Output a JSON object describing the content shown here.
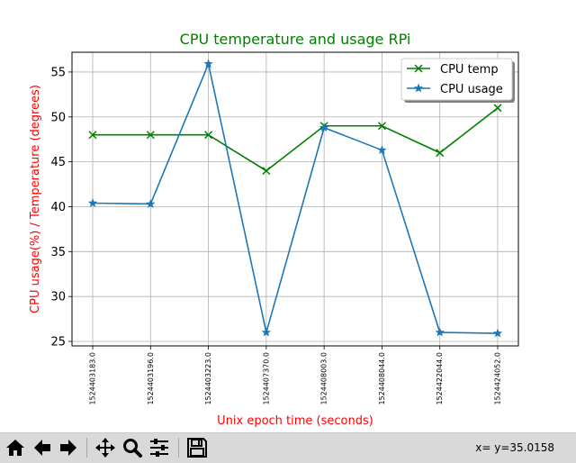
{
  "chart_data": {
    "type": "line",
    "title": "CPU temperature and usage RPi",
    "xlabel": "Unix epoch time (seconds)",
    "ylabel": "CPU usage(%) / Temperature (degrees)",
    "categories": [
      "1524403183.0",
      "1524403196.0",
      "1524403223.0",
      "1524407370.0",
      "1524408003.0",
      "1524408044.0",
      "1524422044.0",
      "1524424052.0"
    ],
    "yticks": [
      "25",
      "30",
      "35",
      "40",
      "45",
      "50",
      "55"
    ],
    "ylim": [
      24.5,
      57.2
    ],
    "grid": true,
    "legend_position": "top-right",
    "series": [
      {
        "name": "CPU temp",
        "color": "#008000",
        "marker": "x",
        "values": [
          48,
          48,
          48,
          44,
          49,
          49,
          46,
          51
        ]
      },
      {
        "name": "CPU usage",
        "color": "#1f77b4",
        "marker": "star",
        "values": [
          40.4,
          40.3,
          55.9,
          26.0,
          48.8,
          46.3,
          26.0,
          25.9
        ]
      }
    ],
    "colors": {
      "title": "#008000",
      "xlabel": "#ff0000",
      "ylabel": "#ff0000"
    }
  },
  "toolbar": {
    "coordinates": "x= y=35.0158",
    "buttons": [
      "home-icon",
      "back-icon",
      "forward-icon",
      "pan-icon",
      "zoom-icon",
      "configure-icon",
      "save-icon"
    ]
  }
}
